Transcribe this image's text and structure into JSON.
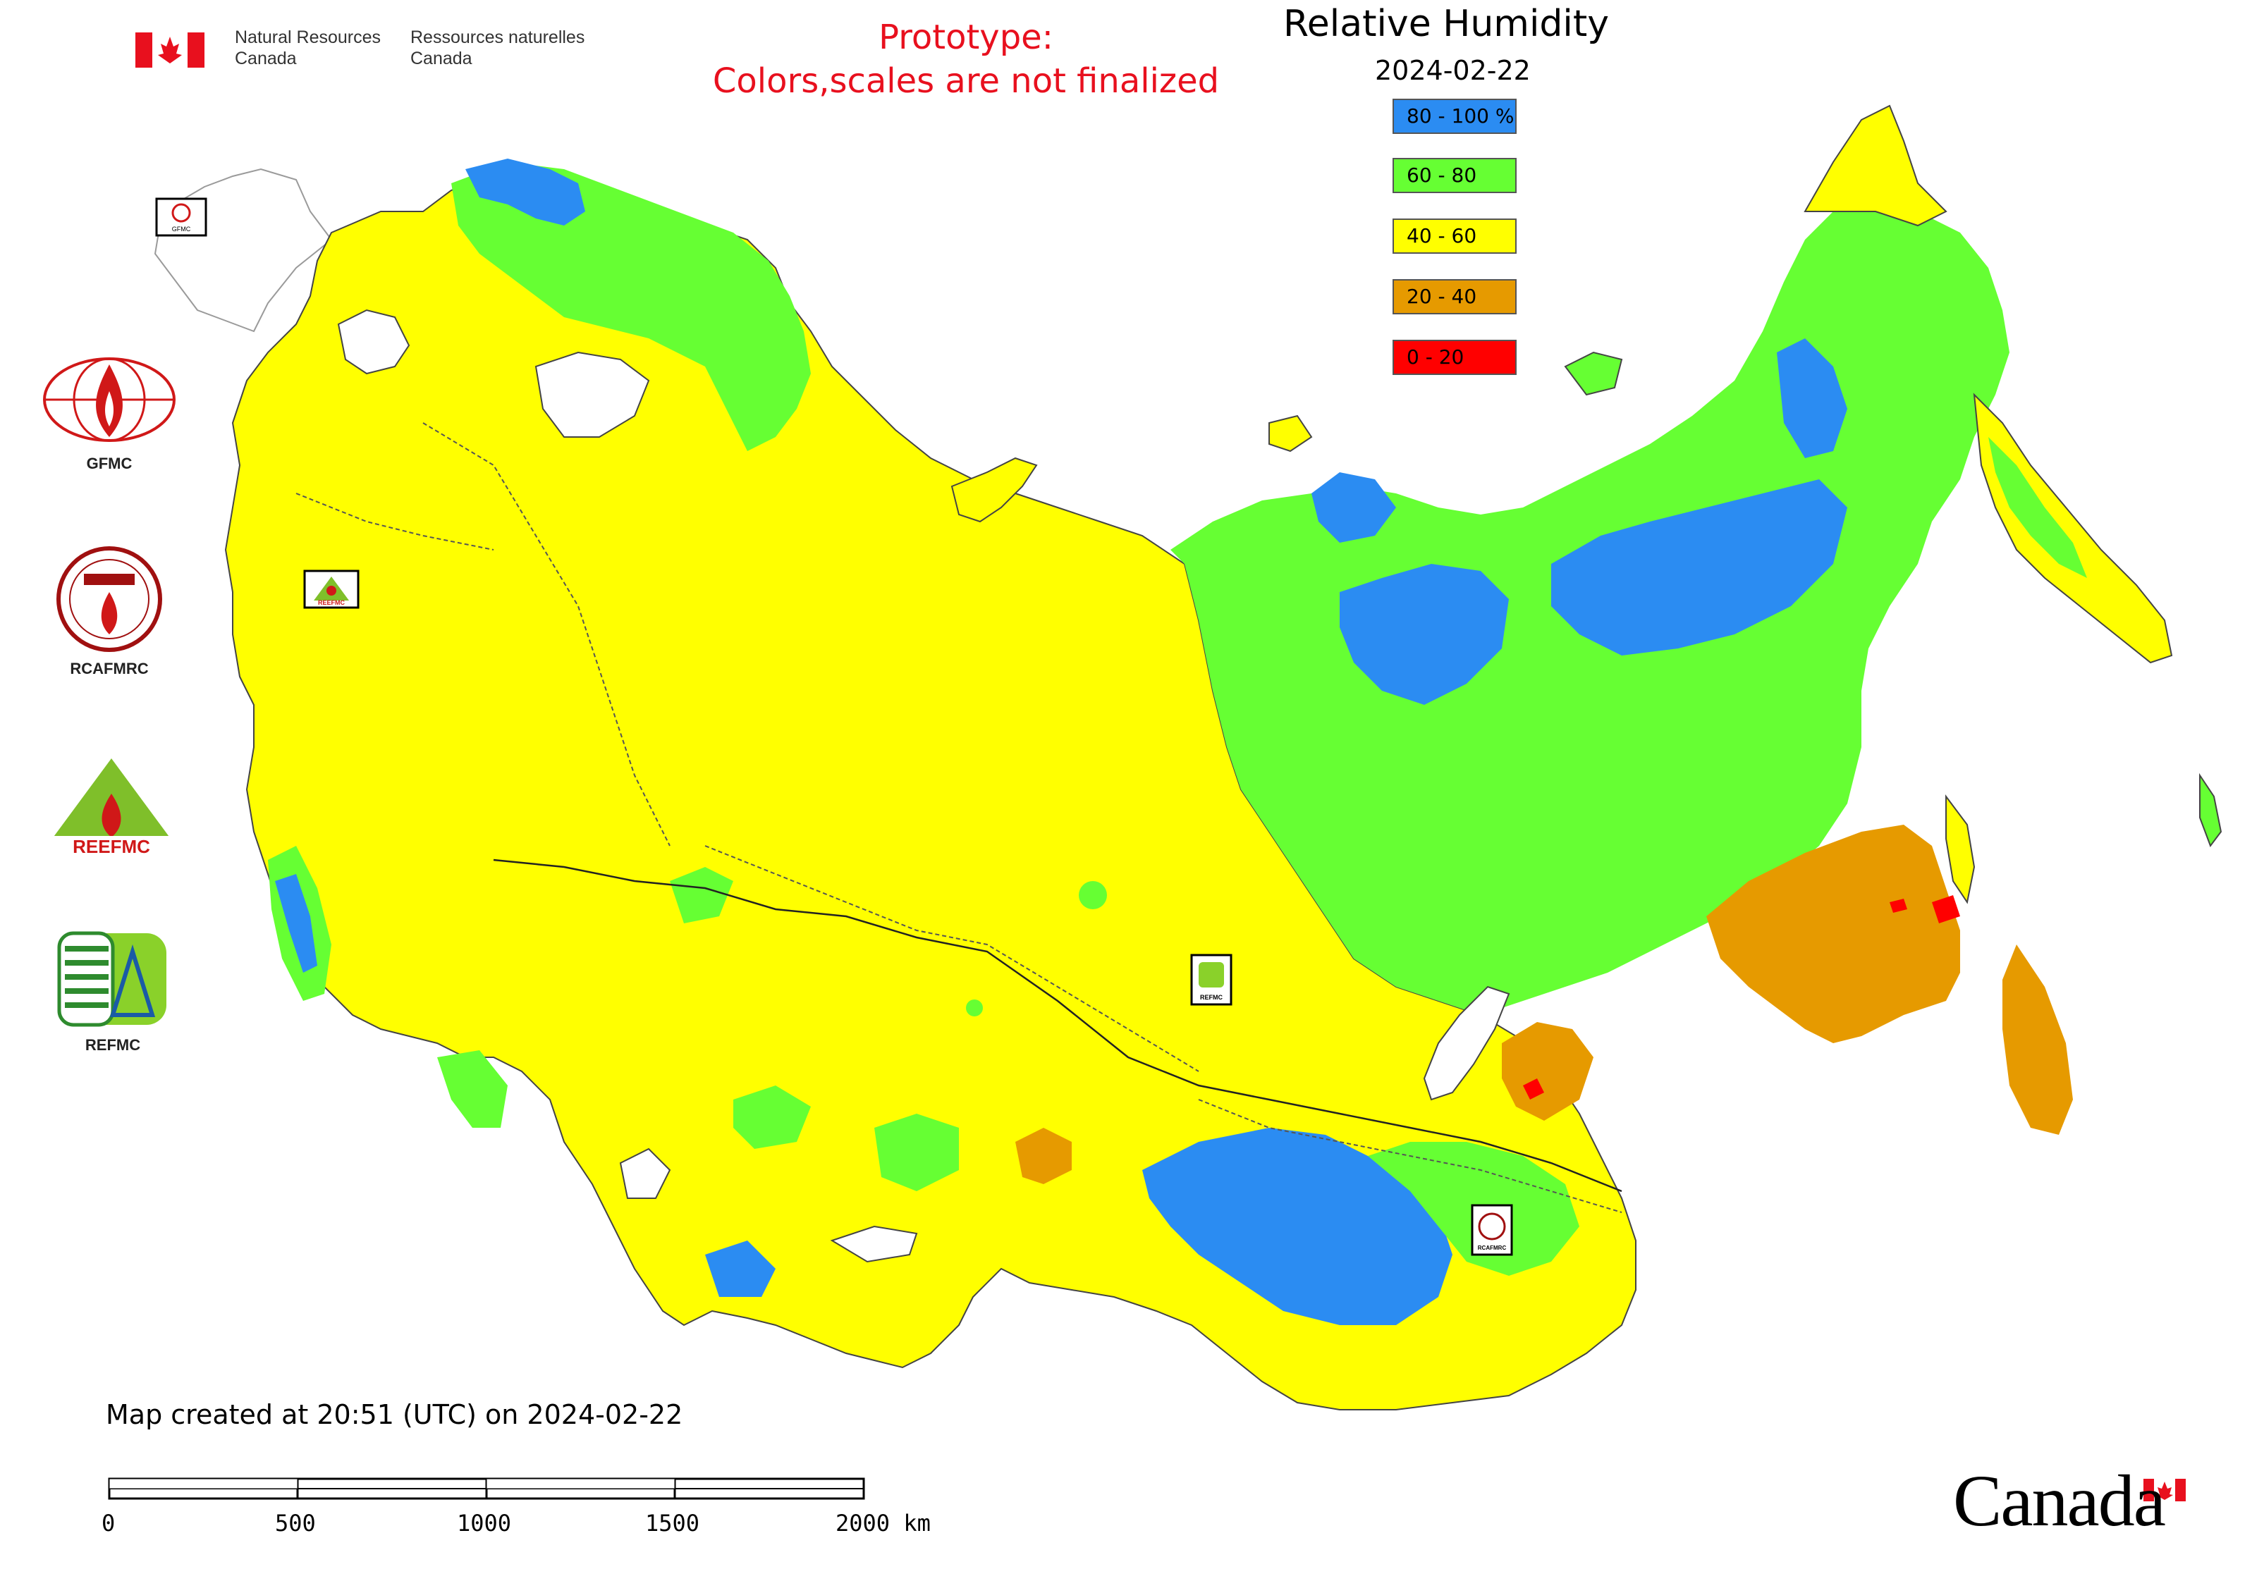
{
  "header": {
    "org_en_line1": "Natural Resources",
    "org_en_line2": "Canada",
    "org_fr_line1": "Ressources naturelles",
    "org_fr_line2": "Canada",
    "prototype_line1": "Prototype:",
    "prototype_line2": "Colors,scales are not finalized"
  },
  "map": {
    "title": "Relative Humidity",
    "date": "2024-02-22",
    "legend": [
      {
        "label": "80 - 100 %",
        "color": "#2b8cf2"
      },
      {
        "label": "60 - 80",
        "color": "#66ff33"
      },
      {
        "label": "40 - 60",
        "color": "#ffff00"
      },
      {
        "label": "20 - 40",
        "color": "#e69a00"
      },
      {
        "label": "0 - 20",
        "color": "#ff0000"
      }
    ],
    "marker_labels": {
      "gfmc": "GFMC",
      "reefmc": "REEFMC",
      "refmc": "REFMC",
      "rcafmrc": "RCAFMRC"
    }
  },
  "side_logos": [
    {
      "name": "gfmc",
      "label": "GFMC"
    },
    {
      "name": "rcafmrc",
      "label": "RCAFMRC"
    },
    {
      "name": "reefmc",
      "label": "REEFMC"
    },
    {
      "name": "refmc",
      "label": "REFMC"
    }
  ],
  "footer": {
    "created": "Map created at 20:51 (UTC) on 2024-02-22",
    "scale_ticks": [
      "0",
      "500",
      "1000",
      "1500",
      "2000 km"
    ],
    "wordmark": "Canada"
  },
  "colors": {
    "water_blue": "#2b8cf2",
    "green": "#66ff33",
    "yellow": "#ffff00",
    "orange": "#e69a00",
    "red": "#ff0000",
    "prototype_red": "#e8101e",
    "flag_red": "#e8101e"
  }
}
